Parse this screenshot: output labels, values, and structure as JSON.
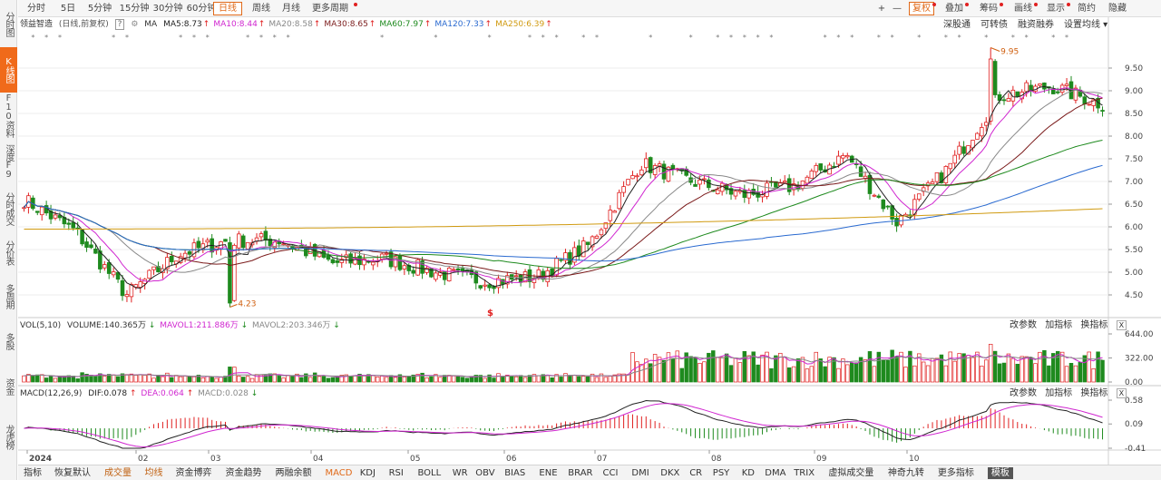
{
  "sidebar": {
    "items": [
      {
        "label": "分时图",
        "active": false
      },
      {
        "label": "K线图",
        "active": true
      },
      {
        "label": "F10资料",
        "active": false
      },
      {
        "label": "深度F9",
        "active": false
      },
      {
        "label": "分时成交",
        "active": false
      },
      {
        "label": "分价表",
        "active": false
      },
      {
        "label": "多周期",
        "active": false
      },
      {
        "label": "多股",
        "active": false
      },
      {
        "label": "资金",
        "active": false
      },
      {
        "label": "龙虎榜",
        "active": false
      }
    ]
  },
  "toolbar": {
    "periods": [
      "分时",
      "5日",
      "5分钟",
      "15分钟",
      "30分钟",
      "60分钟",
      "日线",
      "周线",
      "月线",
      "更多周期"
    ],
    "active_period": "日线",
    "right_buttons": [
      "+",
      "—",
      "复权",
      "叠加",
      "筹码",
      "画线",
      "显示",
      "简约",
      "隐藏"
    ]
  },
  "header": {
    "stock_name": "领益智造",
    "mode_text": "(日线,前复权)",
    "help": "?",
    "ma_label": "MA",
    "ma_values": [
      {
        "label": "MA5:8.73",
        "color": "#222222"
      },
      {
        "label": "MA10:8.44",
        "color": "#d026d0"
      },
      {
        "label": "MA20:8.58",
        "color": "#888888"
      },
      {
        "label": "MA30:8.65",
        "color": "#7a1a1a"
      },
      {
        "label": "MA60:7.97",
        "color": "#1e8a1e"
      },
      {
        "label": "MA120:7.33",
        "color": "#2a6ad0"
      },
      {
        "label": "MA250:6.39",
        "color": "#d09a10"
      }
    ],
    "links": [
      "深股通",
      "可转债",
      "融资融券",
      "设置均线"
    ]
  },
  "price_axis": {
    "ticks": [
      "9.50",
      "9.00",
      "8.50",
      "8.00",
      "7.50",
      "7.00",
      "6.50",
      "6.00",
      "5.50",
      "5.00",
      "4.50"
    ],
    "high_label": "9.95",
    "low_label": "4.23",
    "dollar_mark": "$"
  },
  "volume_panel": {
    "label": "VOL(5,10)",
    "volume": "VOLUME:140.365万",
    "mavol1": "MAVOL1:211.886万",
    "mavol2": "MAVOL2:203.346万",
    "ticks": [
      "644.00",
      "322.00",
      "0.00"
    ],
    "links": [
      "改参数",
      "加指标",
      "换指标"
    ],
    "close": "X"
  },
  "macd_panel": {
    "label": "MACD(12,26,9)",
    "dif": "DIF:0.078",
    "dea": "DEA:0.064",
    "macd": "MACD:0.028",
    "ticks": [
      "0.58",
      "0.09",
      "-0.41"
    ],
    "links": [
      "改参数",
      "加指标",
      "换指标"
    ],
    "close": "X"
  },
  "date_axis": {
    "labels": [
      "2024",
      "02",
      "03",
      "04",
      "05",
      "06",
      "07",
      "08",
      "09",
      "10"
    ]
  },
  "bottom_tabs": [
    "指标",
    "恢复默认",
    "成交量",
    "均线",
    "资金博弈",
    "资金趋势",
    "两融余额",
    "MACD",
    "KDJ",
    "RSI",
    "BOLL",
    "WR",
    "OBV",
    "BIAS",
    "ENE",
    "BRAR",
    "CCI",
    "DMI",
    "DKX",
    "CR",
    "PSY",
    "KD",
    "DMA",
    "TRIX",
    "虚拟成交量",
    "神奇九转",
    "更多指标",
    "模板"
  ],
  "colors": {
    "up": "#e02020",
    "down": "#1e8a1e",
    "accent": "#f06a1a"
  },
  "chart_data": {
    "type": "candlestick",
    "price_range": [
      4.23,
      9.95
    ],
    "ylim": [
      4.2,
      9.95
    ],
    "monthly_path": [
      {
        "x": "2024-01",
        "close": 6.6
      },
      {
        "x": "2024-01b",
        "close": 5.9
      },
      {
        "x": "2024-02",
        "close": 4.5
      },
      {
        "x": "2024-02b",
        "close": 5.4
      },
      {
        "x": "2024-03",
        "close": 5.7
      },
      {
        "x": "2024-03b",
        "close": 5.7
      },
      {
        "x": "2024-04",
        "close": 5.2
      },
      {
        "x": "2024-04b",
        "close": 5.3
      },
      {
        "x": "2024-05",
        "close": 5.0
      },
      {
        "x": "2024-05b",
        "close": 4.8
      },
      {
        "x": "2024-06",
        "close": 4.9
      },
      {
        "x": "2024-06b",
        "close": 5.6
      },
      {
        "x": "2024-07",
        "close": 7.4
      },
      {
        "x": "2024-07b",
        "close": 7.0
      },
      {
        "x": "2024-08",
        "close": 6.7
      },
      {
        "x": "2024-08b",
        "close": 6.9
      },
      {
        "x": "2024-09",
        "close": 7.6
      },
      {
        "x": "2024-09b",
        "close": 6.1
      },
      {
        "x": "2024-10",
        "close": 7.3
      },
      {
        "x": "2024-10b",
        "close": 8.9
      },
      {
        "x": "2024-11",
        "close": 9.1
      },
      {
        "x": "2024-11b",
        "close": 8.7
      }
    ],
    "volume_range": [
      0,
      644
    ],
    "macd_range": [
      -0.41,
      0.58
    ]
  }
}
